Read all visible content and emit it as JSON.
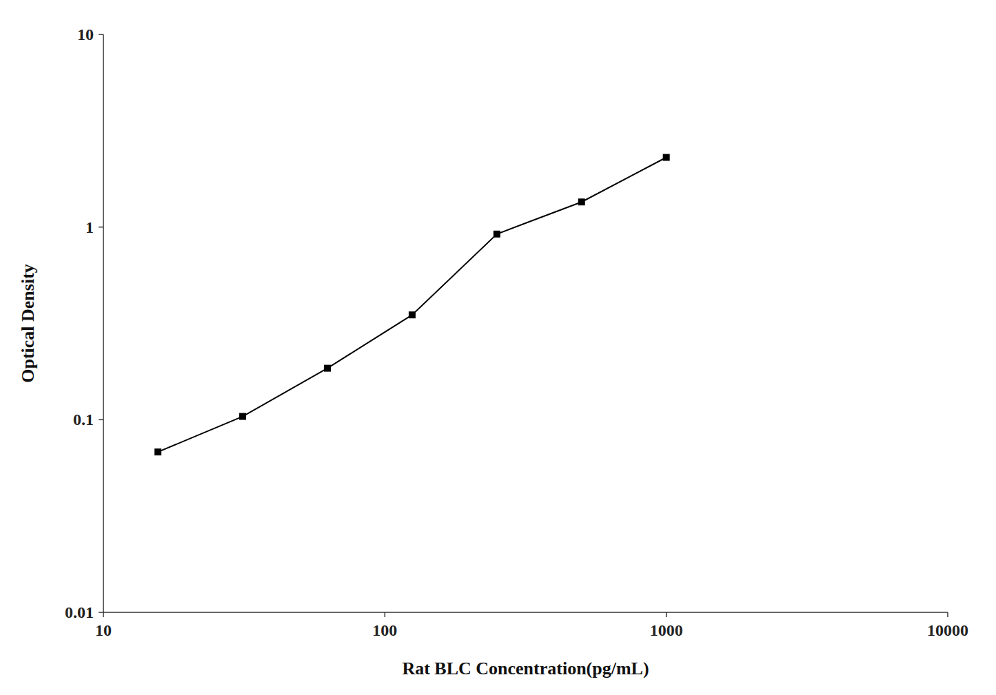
{
  "chart_data": {
    "type": "line",
    "x": [
      15.625,
      31.25,
      62.5,
      125,
      250,
      500,
      1000
    ],
    "values": [
      0.068,
      0.104,
      0.185,
      0.35,
      0.92,
      1.35,
      2.3
    ],
    "xlabel": "Rat BLC Concentration(pg/mL)",
    "ylabel": "Optical Density",
    "xlim": [
      10,
      10000
    ],
    "ylim": [
      0.01,
      10
    ],
    "xticks": [
      10,
      100,
      1000,
      10000
    ],
    "yticks": [
      0.01,
      0.1,
      1,
      10
    ],
    "log": true,
    "grid": false,
    "color": "#000000",
    "marker": "square"
  }
}
